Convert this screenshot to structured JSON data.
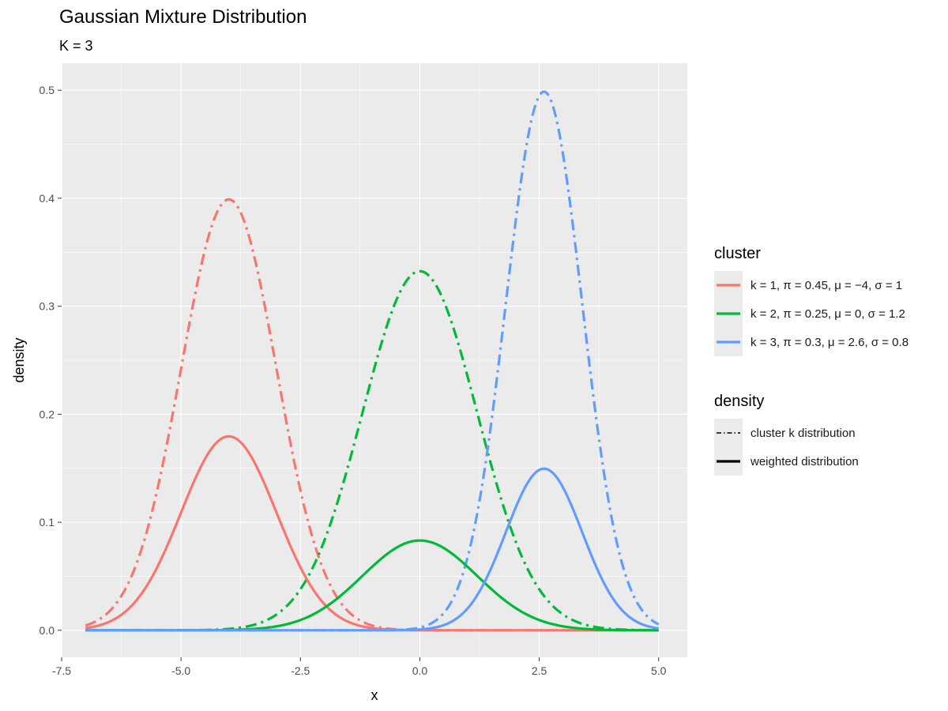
{
  "chart_data": {
    "type": "line",
    "title": "Gaussian Mixture Distribution",
    "subtitle": "K = 3",
    "xlabel": "x",
    "ylabel": "density",
    "xlim": [
      -7.5,
      5.6
    ],
    "ylim": [
      -0.025,
      0.525
    ],
    "x_range": [
      -7,
      5
    ],
    "x_ticks": [
      -7.5,
      -5.0,
      -2.5,
      0.0,
      2.5,
      5.0
    ],
    "x_tick_labels": [
      "-7.5",
      "-5.0",
      "-2.5",
      "0.0",
      "2.5",
      "5.0"
    ],
    "y_ticks": [
      0.0,
      0.1,
      0.2,
      0.3,
      0.4,
      0.5
    ],
    "y_tick_labels": [
      "0.0",
      "0.1",
      "0.2",
      "0.3",
      "0.4",
      "0.5"
    ],
    "grid": true,
    "background": "#ebebeb",
    "components": [
      {
        "k": 1,
        "pi": 0.45,
        "mu": -4,
        "sigma": 1,
        "color": "#f8766d",
        "label": "k = 1, π = 0.45, μ = −4, σ = 1"
      },
      {
        "k": 2,
        "pi": 0.25,
        "mu": 0,
        "sigma": 1.2,
        "color": "#00ba38",
        "label": "k = 2, π = 0.25, μ = 0, σ = 1.2"
      },
      {
        "k": 3,
        "pi": 0.3,
        "mu": 2.6,
        "sigma": 0.8,
        "color": "#619cff",
        "label": "k = 3, π = 0.3, μ = 2.6, σ = 0.8"
      }
    ],
    "legend": {
      "position": "right",
      "cluster_title": "cluster",
      "density_title": "density",
      "density_items": [
        {
          "linetype": "dotdash",
          "label": "cluster k distribution"
        },
        {
          "linetype": "solid",
          "label": "weighted distribution"
        }
      ]
    }
  }
}
